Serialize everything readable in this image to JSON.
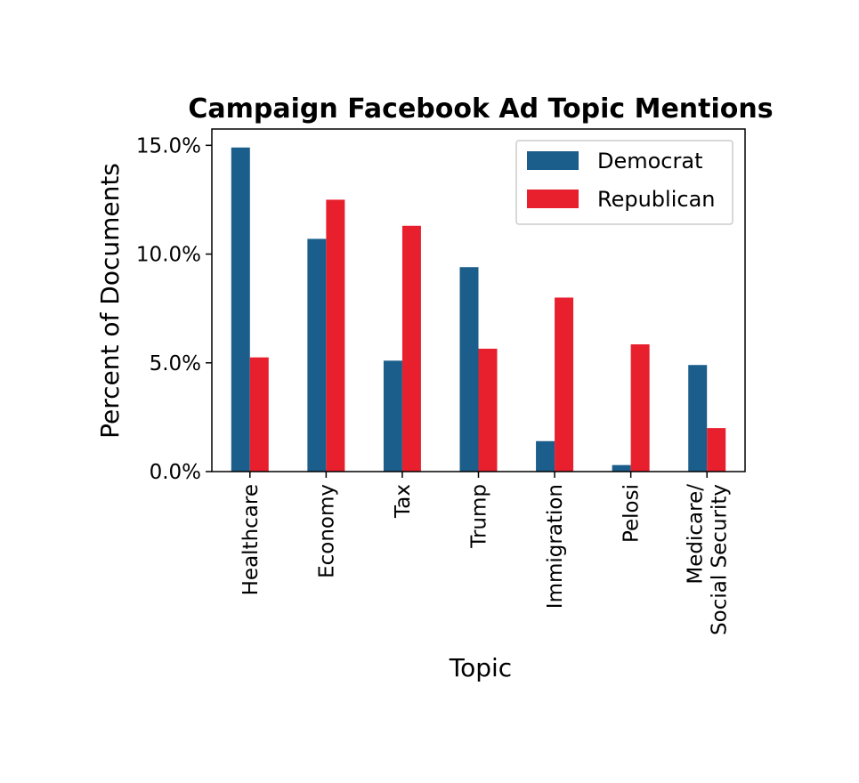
{
  "chart_data": {
    "type": "bar",
    "title": "Campaign Facebook Ad Topic Mentions",
    "xlabel": "Topic",
    "ylabel": "Percent of Documents",
    "categories": [
      "Healthcare",
      "Economy",
      "Tax",
      "Trump",
      "Immigration",
      "Pelosi",
      "Medicare/\nSocial Security"
    ],
    "series": [
      {
        "name": "Democrat",
        "color": "#1b5e8b",
        "values": [
          14.9,
          10.7,
          5.1,
          9.4,
          1.4,
          0.3,
          4.9
        ]
      },
      {
        "name": "Republican",
        "color": "#e8202e",
        "values": [
          5.25,
          12.5,
          11.3,
          5.65,
          8.0,
          5.85,
          2.0
        ]
      }
    ],
    "ylim": [
      0,
      15.75
    ],
    "yticks": [
      0,
      5,
      10,
      15
    ],
    "ytick_labels": [
      "0.0%",
      "5.0%",
      "10.0%",
      "15.0%"
    ],
    "legend_position": "top-right",
    "grid": false
  }
}
